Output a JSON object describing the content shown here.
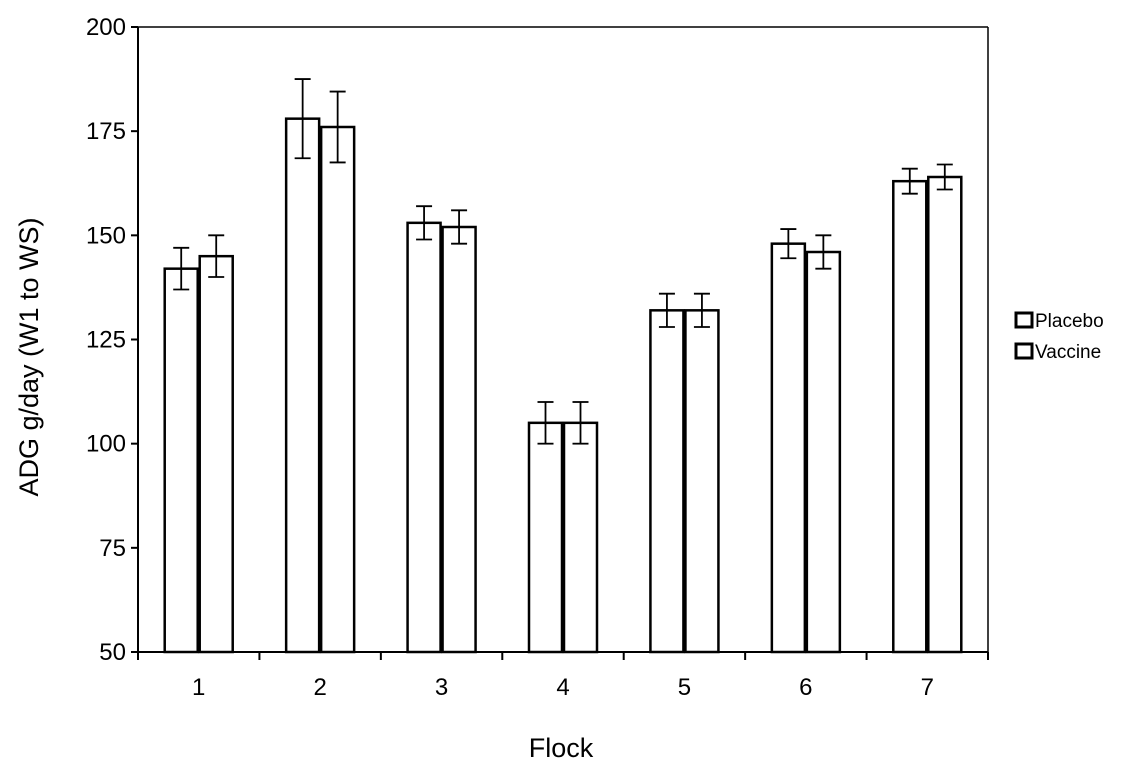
{
  "chart_data": {
    "type": "bar",
    "title": "",
    "xlabel": "Flock",
    "ylabel": "ADG g/day (W1 to WS)",
    "categories": [
      "1",
      "2",
      "3",
      "4",
      "5",
      "6",
      "7"
    ],
    "series": [
      {
        "name": "Placebo",
        "values": [
          142,
          178,
          153,
          105,
          132,
          148,
          163
        ],
        "error": [
          5,
          9.5,
          4,
          5,
          4,
          3.5,
          3
        ]
      },
      {
        "name": "Vaccine",
        "values": [
          145,
          176,
          152,
          105,
          132,
          146,
          164
        ],
        "error": [
          5,
          8.5,
          4,
          5,
          4,
          4,
          3
        ]
      }
    ],
    "ylim": [
      50,
      200
    ],
    "yticks": [
      "50",
      "75",
      "100",
      "125",
      "150",
      "175",
      "200"
    ],
    "grid": false,
    "legend_position": "right",
    "colors": {
      "bar_fill": "#ffffff",
      "stroke": "#000000"
    }
  }
}
